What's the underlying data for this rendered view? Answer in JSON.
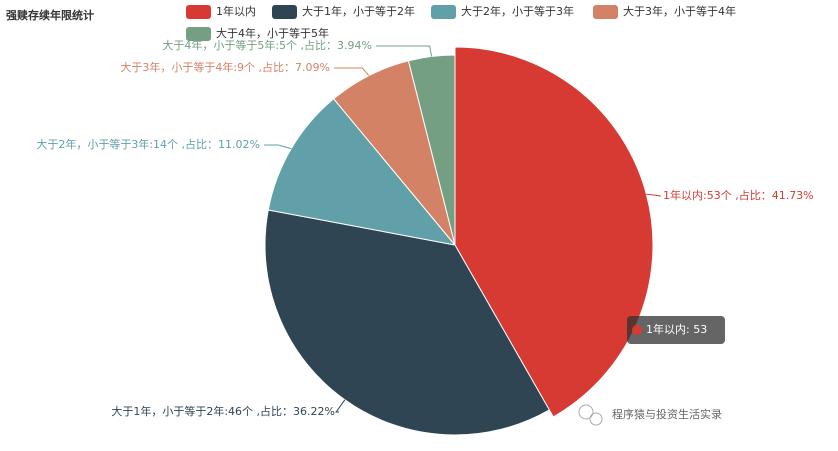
{
  "chart_data": {
    "type": "pie",
    "title": "强赎存续年限统计",
    "categories": [
      "1年以内",
      "大于1年，小于等于2年",
      "大于2年，小于等于3年",
      "大于3年，小于等于4年",
      "大于4年，小于等于5年"
    ],
    "values": [
      53,
      46,
      14,
      9,
      5
    ],
    "value_labels": [
      "1年以内:53个 ,占比：41.73%",
      "大于1年，小于等于2年:46个 ,占比：36.22%",
      "大于2年，小于等于3年:14个 ,占比：11.02%",
      "大于3年，小于等于4年:9个 ,占比：7.09%",
      "大于4年，小于等于5年:5个 ,占比：3.94%"
    ],
    "colors": [
      "#d63a33",
      "#2f4554",
      "#61a0a8",
      "#d48265",
      "#749f83"
    ],
    "tooltip": "1年以内: 53",
    "watermark": "程序猿与投资生活实录"
  }
}
